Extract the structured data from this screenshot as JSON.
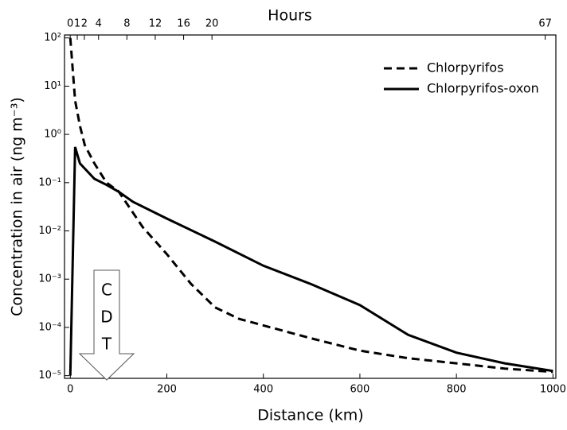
{
  "chart_data": {
    "type": "line",
    "xlabel": "Distance (km)",
    "ylabel": "Concentration in air (ng m⁻³)",
    "x2label": "Hours",
    "xlim": [
      -12,
      1006
    ],
    "xticks": [
      0,
      200,
      400,
      600,
      800,
      1000
    ],
    "x2lim": [
      -0.8,
      68.5
    ],
    "x2ticks": [
      0,
      1,
      2,
      4,
      8,
      12,
      16,
      20,
      67
    ],
    "ylim": [
      8.8e-06,
      115
    ],
    "ylog": true,
    "yticks": [
      {
        "value": 100,
        "label": "10²"
      },
      {
        "value": 10,
        "label": "10¹"
      },
      {
        "value": 1,
        "label": "10⁰"
      },
      {
        "value": 0.1,
        "label": "10⁻¹"
      },
      {
        "value": 0.01,
        "label": "10⁻²"
      },
      {
        "value": 0.001,
        "label": "10⁻³"
      },
      {
        "value": 0.0001,
        "label": "10⁻⁴"
      },
      {
        "value": 1e-05,
        "label": "10⁻⁵"
      }
    ],
    "legend": "upper right",
    "annotation": [
      "C",
      "D",
      "T"
    ],
    "series": [
      {
        "name": "Chlorpyrifos",
        "color": "#000000",
        "dash": true,
        "x": [
          0,
          10,
          20,
          30,
          50,
          75,
          100,
          150,
          200,
          250,
          300,
          350,
          400,
          500,
          600,
          700,
          800,
          900,
          1000
        ],
        "values": [
          100,
          5,
          1.5,
          0.6,
          0.25,
          0.1,
          0.066,
          0.012,
          0.0033,
          0.0008,
          0.00026,
          0.00015,
          0.00011,
          5.9e-05,
          3.3e-05,
          2.3e-05,
          1.8e-05,
          1.4e-05,
          1.2e-05
        ]
      },
      {
        "name": "Chlorpyrifos-oxon",
        "color": "#000000",
        "dash": false,
        "x": [
          0,
          10,
          20,
          50,
          75,
          100,
          130,
          200,
          300,
          400,
          500,
          600,
          700,
          800,
          900,
          1000
        ],
        "values": [
          1e-05,
          0.55,
          0.25,
          0.12,
          0.09,
          0.065,
          0.04,
          0.018,
          0.006,
          0.0019,
          0.00078,
          0.00029,
          7e-05,
          3e-05,
          1.8e-05,
          1.25e-05
        ]
      }
    ]
  }
}
